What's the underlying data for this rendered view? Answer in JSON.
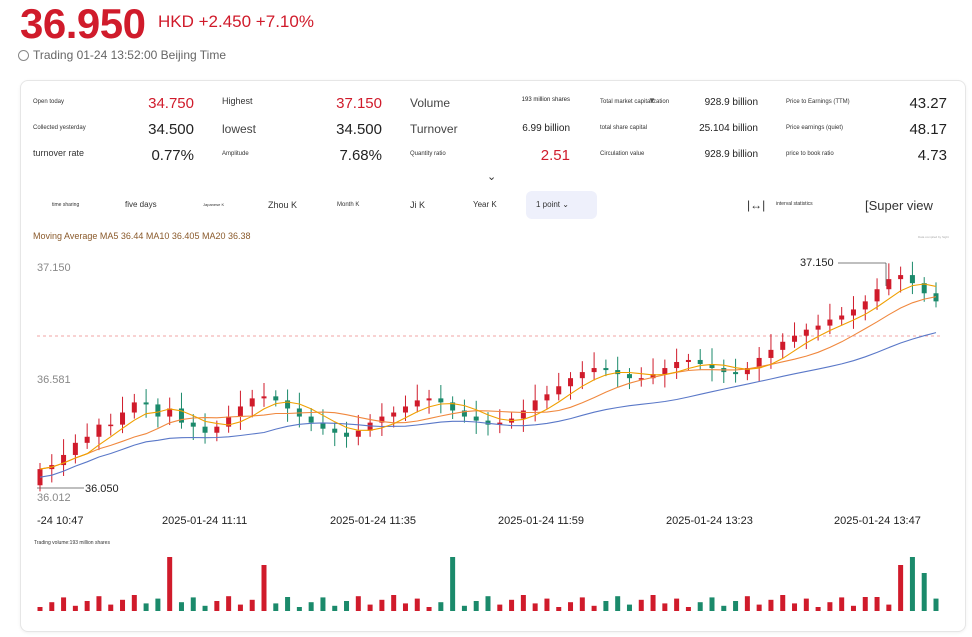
{
  "quote": {
    "price": "36.950",
    "change": "HKD +2.450 +7.10%",
    "trading_time": "Trading 01-24 13:52:00 Beijing Time"
  },
  "stats": [
    {
      "label": "Open today",
      "value": "34.750",
      "red": true
    },
    {
      "label": "Highest",
      "value": "37.150",
      "red": true
    },
    {
      "label": "Volume",
      "value": "193 million shares"
    },
    {
      "label": "Total market capitalization",
      "value": "928.9 billion"
    },
    {
      "label": "Price to Earnings (TTM)",
      "value": "43.27"
    },
    {
      "label": "Collected yesterday",
      "value": "34.500"
    },
    {
      "label": "lowest",
      "value": "34.500"
    },
    {
      "label": "Turnover",
      "value": "6.99 billion"
    },
    {
      "label": "total share capital",
      "value": "25.104 billion"
    },
    {
      "label": "Price earnings (quiet)",
      "value": "48.17"
    },
    {
      "label": "turnover rate",
      "value": "0.77%"
    },
    {
      "label": "Amplitude",
      "value": "7.68%"
    },
    {
      "label": "Quantity ratio",
      "value": "2.51",
      "red": true
    },
    {
      "label": "Circulation value",
      "value": "928.9 billion"
    },
    {
      "label": "price to book ratio",
      "value": "4.73"
    }
  ],
  "tabs": [
    "time sharing",
    "five days",
    "Japanese K",
    "Zhou K",
    "Month K",
    "Ji K",
    "Year K",
    "1 point"
  ],
  "tools": {
    "interval": "interval statistics",
    "super": "[Super view"
  },
  "ma_text": "Moving Average MA5 36.44 MA10 36.405 MA20 36.38",
  "tiny_note": "Data compiled by Sight",
  "volume_label": "Trading volume:193 million shares",
  "colors": {
    "up": "#d01b2b",
    "down": "#1b8a6b",
    "ma5": "#f0a000",
    "ma10": "#f0883e",
    "ma20": "#5a78c8"
  },
  "chart_data": {
    "type": "candlestick",
    "y_axis_labels": [
      "37.150",
      "36.581",
      "36.012"
    ],
    "x_axis_labels": [
      "-24 10:47",
      "2025-01-24 11:11",
      "2025-01-24 11:35",
      "2025-01-24 11:59",
      "2025-01-24 13:23",
      "2025-01-24 13:47"
    ],
    "annotations": {
      "high": "37.150",
      "low": "36.050"
    },
    "closes": [
      36.15,
      36.17,
      36.22,
      36.28,
      36.31,
      36.37,
      36.37,
      36.43,
      36.48,
      36.47,
      36.41,
      36.45,
      36.38,
      36.36,
      36.33,
      36.36,
      36.41,
      36.46,
      36.5,
      36.51,
      36.49,
      36.45,
      36.41,
      36.38,
      36.35,
      36.33,
      36.31,
      36.34,
      36.38,
      36.41,
      36.43,
      36.46,
      36.49,
      36.5,
      36.48,
      36.44,
      36.41,
      36.39,
      36.37,
      36.38,
      36.4,
      36.44,
      36.49,
      36.52,
      36.56,
      36.6,
      36.63,
      36.65,
      36.64,
      36.62,
      36.6,
      36.6,
      36.62,
      36.65,
      36.68,
      36.69,
      36.67,
      36.65,
      36.63,
      36.62,
      36.65,
      36.7,
      36.74,
      36.78,
      36.81,
      36.84,
      36.86,
      36.89,
      36.91,
      36.94,
      36.98,
      37.04,
      37.09,
      37.11,
      37.07,
      37.02,
      36.98
    ],
    "volume_note": "Volume bars shown in same colors as candles"
  }
}
